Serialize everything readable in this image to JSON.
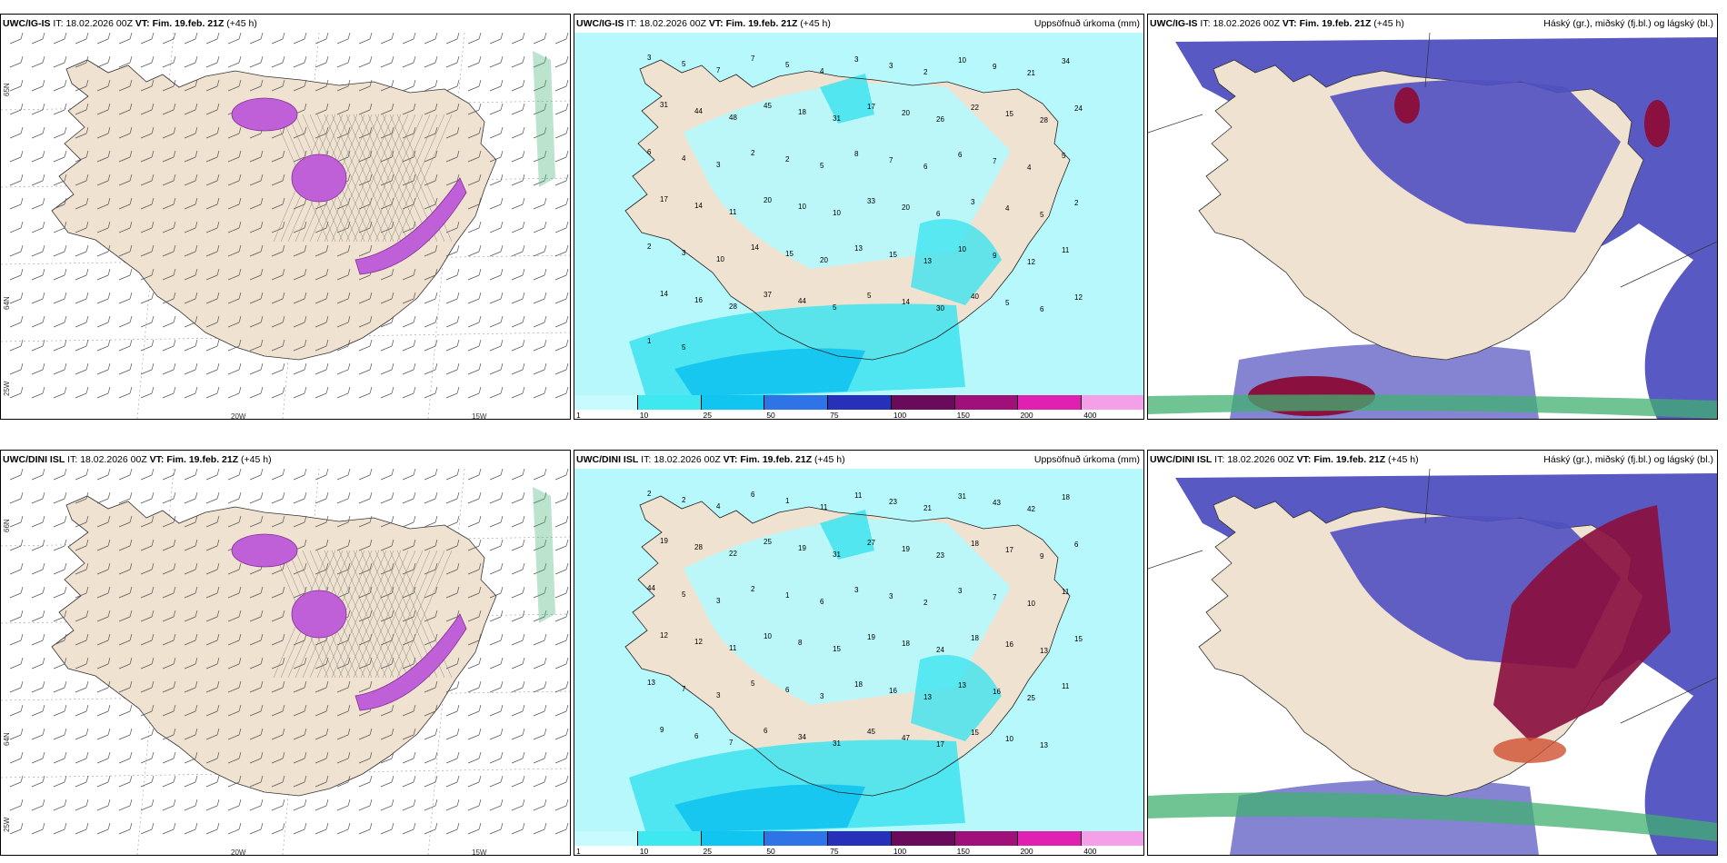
{
  "rows": [
    {
      "model": "UWC/IG-IS",
      "issue_label": "IT:",
      "issue_time": "18.02.2026 00Z",
      "valid_label": "VT:",
      "valid_time": "Fim. 19.feb. 21Z",
      "lead": "(+45 h)",
      "precip_numbers": [
        "3",
        "5",
        "7",
        "7",
        "5",
        "4",
        "3",
        "3",
        "2",
        "10",
        "9",
        "21",
        "34",
        "31",
        "44",
        "48",
        "45",
        "18",
        "31",
        "17",
        "20",
        "26",
        "22",
        "15",
        "28",
        "24",
        "6",
        "4",
        "3",
        "2",
        "2",
        "5",
        "8",
        "7",
        "6",
        "6",
        "7",
        "4",
        "5",
        "17",
        "14",
        "11",
        "20",
        "10",
        "10",
        "33",
        "20",
        "6",
        "3",
        "4",
        "5",
        "2",
        "2",
        "3",
        "10",
        "14",
        "15",
        "20",
        "13",
        "15",
        "13",
        "10",
        "9",
        "12",
        "11",
        "14",
        "16",
        "28",
        "37",
        "44",
        "5",
        "5",
        "14",
        "30",
        "40",
        "5",
        "6",
        "12",
        "1",
        "5"
      ],
      "lat_labels": [
        "65N",
        "64N"
      ],
      "lon_labels": [
        "20W",
        "15W"
      ],
      "corner_label": "25W"
    },
    {
      "model": "UWC/DINI ISL",
      "issue_label": "IT:",
      "issue_time": "18.02.2026 00Z",
      "valid_label": "VT:",
      "valid_time": "Fim. 19.feb. 21Z",
      "lead": "(+45 h)",
      "precip_numbers": [
        "2",
        "2",
        "4",
        "6",
        "1",
        "11",
        "11",
        "23",
        "21",
        "31",
        "43",
        "42",
        "18",
        "19",
        "28",
        "22",
        "25",
        "19",
        "31",
        "27",
        "19",
        "23",
        "18",
        "17",
        "9",
        "6",
        "44",
        "5",
        "3",
        "2",
        "1",
        "6",
        "3",
        "3",
        "2",
        "3",
        "7",
        "10",
        "11",
        "12",
        "12",
        "11",
        "10",
        "8",
        "15",
        "19",
        "18",
        "24",
        "18",
        "16",
        "13",
        "15",
        "13",
        "7",
        "3",
        "5",
        "6",
        "3",
        "18",
        "16",
        "13",
        "13",
        "16",
        "25",
        "11",
        "9",
        "6",
        "7",
        "6",
        "34",
        "31",
        "45",
        "47",
        "17",
        "15",
        "10",
        "13"
      ],
      "lat_labels": [
        "66N",
        "64N"
      ],
      "lon_labels": [
        "20W",
        "15W"
      ],
      "corner_label": "25W"
    }
  ],
  "precip_panel_title": "Uppsöfnuð úrkoma (mm)",
  "cloud_panel_title": "Háský (gr.), miðský (fj.bl.) og lágský (bl.)",
  "colorbar": {
    "thresholds": [
      "1",
      "10",
      "25",
      "50",
      "75",
      "100",
      "150",
      "200",
      "400"
    ],
    "colors": [
      "#c8fbff",
      "#3ee8f0",
      "#10c6f0",
      "#2f74e6",
      "#2730b8",
      "#6a0a5a",
      "#a0107a",
      "#e020b0",
      "#f4a0e8"
    ]
  },
  "colors": {
    "land": "#f0e2d0",
    "precip_light": "#b6f8fb",
    "precip_mid": "#3ee3ef",
    "precip_heavy": "#11c3ef",
    "snow_purple": "#c060d8",
    "cloud_high": "#5050c0",
    "cloud_mid": "#8a1040",
    "cloud_low": "#40b070"
  }
}
